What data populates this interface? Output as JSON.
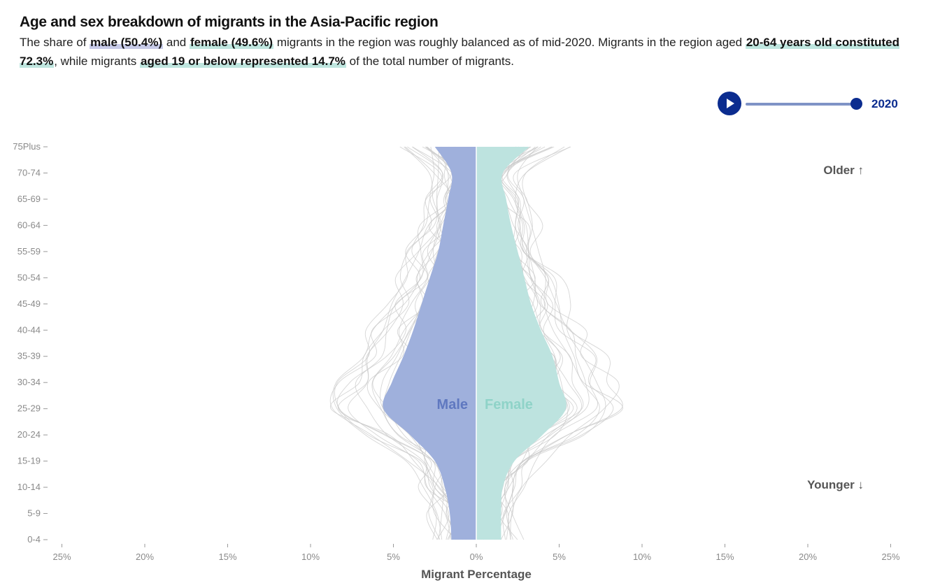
{
  "header": {
    "title": "Age and sex breakdown of migrants in the Asia-Pacific region",
    "description": {
      "t1": "The share of ",
      "h1": "male (50.4%)",
      "t2": " and ",
      "h2": "female (49.6%)",
      "t3": " migrants in the region was roughly balanced as of mid-2020. Migrants in the region aged ",
      "h3": "20-64 years old constituted 72.3%",
      "t4": ", while migrants ",
      "h4": "aged 19 or below represented 14.7%",
      "t5": " of the total number of migrants."
    }
  },
  "player": {
    "year": "2020",
    "play_icon": "play-icon",
    "slider_value_fraction": 1.0
  },
  "colors": {
    "male": "#9fb0dc",
    "female": "#bde3df",
    "male_label": "#5f78c0",
    "female_label": "#8fd3c8",
    "accent": "#0b2c8f",
    "country_lines": "#c8c8c8"
  },
  "chart_data": {
    "type": "area",
    "subtype": "population pyramid (smoothed violin)",
    "xlabel": "Migrant Percentage",
    "xlim": [
      -25,
      25
    ],
    "x_ticks": [
      "25%",
      "20%",
      "15%",
      "10%",
      "5%",
      "0%",
      "5%",
      "10%",
      "15%",
      "20%",
      "25%"
    ],
    "categories": [
      "0-4",
      "5-9",
      "10-14",
      "15-19",
      "20-24",
      "25-29",
      "30-34",
      "35-39",
      "40-44",
      "45-49",
      "50-54",
      "55-59",
      "60-64",
      "65-69",
      "70-74",
      "75Plus"
    ],
    "series": [
      {
        "name": "Male",
        "values": [
          1.5,
          1.6,
          1.9,
          2.5,
          4.0,
          5.6,
          5.1,
          4.4,
          3.8,
          3.3,
          2.8,
          2.3,
          2.0,
          1.7,
          1.5,
          2.5
        ]
      },
      {
        "name": "Female",
        "values": [
          1.5,
          1.5,
          1.6,
          2.3,
          4.0,
          5.4,
          5.0,
          4.6,
          3.9,
          3.3,
          2.9,
          2.5,
          2.1,
          1.8,
          1.6,
          3.2
        ]
      }
    ],
    "annotations": {
      "older": "Older ↑",
      "younger": "Younger ↓"
    },
    "grid": false
  }
}
